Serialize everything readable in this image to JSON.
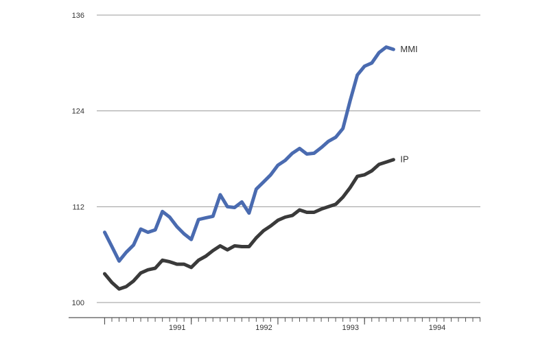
{
  "chart_data": {
    "type": "line",
    "title": "",
    "xlabel": "",
    "ylabel": "",
    "ylim": [
      100,
      136
    ],
    "yticks": [
      "100",
      "112",
      "124",
      "136"
    ],
    "ytick_values": [
      100,
      112,
      124,
      136
    ],
    "grid": "horizontal",
    "xticks": [
      "1991",
      "1992",
      "1993",
      "1994"
    ],
    "xtick_positions": [
      1991.5,
      1992.5,
      1993.5,
      1994.5
    ],
    "xlim": [
      1990.5,
      1994.92
    ],
    "legend": "inline-right",
    "series": [
      {
        "name": "MMI",
        "color": "#4a6bb0",
        "x": [
          1990.583,
          1990.667,
          1990.75,
          1990.833,
          1990.917,
          1991.0,
          1991.083,
          1991.167,
          1991.25,
          1991.333,
          1991.417,
          1991.5,
          1991.583,
          1991.667,
          1991.75,
          1991.833,
          1991.917,
          1992.0,
          1992.083,
          1992.167,
          1992.25,
          1992.333,
          1992.417,
          1992.5,
          1992.583,
          1992.667,
          1992.75,
          1992.833,
          1992.917,
          1993.0,
          1993.083,
          1993.167,
          1993.25,
          1993.333,
          1993.417,
          1993.5,
          1993.583,
          1993.667,
          1993.75,
          1993.833,
          1993.917
        ],
        "values": [
          108.8,
          107.0,
          105.2,
          106.3,
          107.2,
          109.2,
          108.8,
          109.1,
          111.4,
          110.7,
          109.5,
          108.6,
          107.9,
          110.4,
          110.6,
          110.8,
          113.5,
          112.0,
          111.9,
          112.6,
          111.2,
          114.2,
          115.1,
          116.0,
          117.2,
          117.8,
          118.7,
          119.3,
          118.6,
          118.7,
          119.4,
          120.2,
          120.7,
          121.8,
          125.3,
          128.5,
          129.6,
          130.0,
          131.3,
          132.0,
          131.7
        ]
      },
      {
        "name": "IP",
        "color": "#3a3a3a",
        "x": [
          1990.583,
          1990.667,
          1990.75,
          1990.833,
          1990.917,
          1991.0,
          1991.083,
          1991.167,
          1991.25,
          1991.333,
          1991.417,
          1991.5,
          1991.583,
          1991.667,
          1991.75,
          1991.833,
          1991.917,
          1992.0,
          1992.083,
          1992.167,
          1992.25,
          1992.333,
          1992.417,
          1992.5,
          1992.583,
          1992.667,
          1992.75,
          1992.833,
          1992.917,
          1993.0,
          1993.083,
          1993.167,
          1993.25,
          1993.333,
          1993.417,
          1993.5,
          1993.583,
          1993.667,
          1993.75,
          1993.833,
          1993.917
        ],
        "values": [
          103.6,
          102.5,
          101.7,
          102.0,
          102.7,
          103.7,
          104.1,
          104.3,
          105.3,
          105.1,
          104.8,
          104.8,
          104.4,
          105.3,
          105.8,
          106.5,
          107.1,
          106.6,
          107.1,
          107.0,
          107.0,
          108.1,
          109.0,
          109.6,
          110.3,
          110.7,
          110.9,
          111.6,
          111.3,
          111.3,
          111.7,
          112.0,
          112.3,
          113.2,
          114.4,
          115.8,
          116.0,
          116.5,
          117.3,
          117.6,
          117.9
        ]
      }
    ]
  }
}
